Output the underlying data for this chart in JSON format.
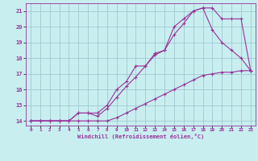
{
  "xlabel": "Windchill (Refroidissement éolien,°C)",
  "bg_color": "#c8eef0",
  "grid_color": "#a0c8d0",
  "line_color": "#993399",
  "xlim": [
    -0.5,
    23.5
  ],
  "ylim": [
    13.7,
    21.5
  ],
  "xticks": [
    0,
    1,
    2,
    3,
    4,
    5,
    6,
    7,
    8,
    9,
    10,
    11,
    12,
    13,
    14,
    15,
    16,
    17,
    18,
    19,
    20,
    21,
    22,
    23
  ],
  "yticks": [
    14,
    15,
    16,
    17,
    18,
    19,
    20,
    21
  ],
  "line1_x": [
    0,
    1,
    2,
    3,
    4,
    5,
    6,
    7,
    8,
    9,
    10,
    11,
    12,
    13,
    14,
    15,
    16,
    17,
    18,
    19,
    20,
    21,
    22,
    23
  ],
  "line1_y": [
    14.0,
    14.0,
    14.0,
    14.0,
    14.0,
    14.0,
    14.0,
    14.0,
    14.0,
    14.2,
    14.5,
    14.8,
    15.1,
    15.4,
    15.7,
    16.0,
    16.3,
    16.6,
    16.9,
    17.0,
    17.1,
    17.1,
    17.2,
    17.2
  ],
  "line2_x": [
    0,
    1,
    2,
    3,
    4,
    5,
    6,
    7,
    8,
    9,
    10,
    11,
    12,
    13,
    14,
    15,
    16,
    17,
    18,
    19,
    20,
    21,
    22,
    23
  ],
  "line2_y": [
    14.0,
    14.0,
    14.0,
    14.0,
    14.0,
    14.5,
    14.5,
    14.5,
    15.0,
    16.0,
    16.5,
    17.5,
    17.5,
    18.3,
    18.5,
    20.0,
    20.5,
    21.0,
    21.2,
    19.8,
    19.0,
    18.5,
    18.0,
    17.2
  ],
  "line3_x": [
    0,
    1,
    2,
    3,
    4,
    5,
    6,
    7,
    8,
    9,
    10,
    11,
    12,
    13,
    14,
    15,
    16,
    17,
    18,
    19,
    20,
    21,
    22,
    23
  ],
  "line3_y": [
    14.0,
    14.0,
    14.0,
    14.0,
    14.0,
    14.5,
    14.5,
    14.3,
    14.8,
    15.5,
    16.2,
    16.8,
    17.5,
    18.2,
    18.5,
    19.5,
    20.2,
    21.0,
    21.2,
    21.2,
    20.5,
    20.5,
    20.5,
    17.2
  ]
}
